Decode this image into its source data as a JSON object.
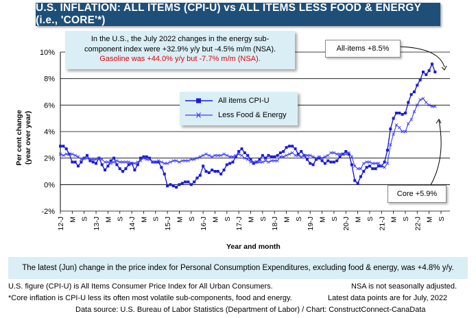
{
  "title": "U.S. INFLATION: ALL ITEMS (CPI-U) vs ALL ITEMS LESS FOOD & ENERGY (i.e., 'CORE'*)",
  "note": {
    "line1": "In the U.S., the July 2022 changes in the energy sub-",
    "line2": "component index were +32.9% y/y but -4.5% m/m (NSA).",
    "line3": "Gasoline was +44.0% y/y but -7.7% m/m (NSA)."
  },
  "callouts": {
    "all_items": "All-items +8.5%",
    "core": "Core +5.9%"
  },
  "axis": {
    "ylabel_1": "Per cent change",
    "ylabel_2": "(year over year)",
    "xlabel": "Year and month"
  },
  "bottom_note": "The latest (Jun) change in the price index for Personal Consumption Expenditures, excluding food & energy, was +4.8% y/y.",
  "footer": {
    "line1_left": "U.S. figure (CPI-U) is All Items Consumer Price Index for All Urban Consumers.",
    "line1_right": "NSA is not seasonally adjusted.",
    "line2_left": "*Core inflation is CPI-U less its often most volatile sub-components, food and energy.",
    "line2_right": "Latest data points are for July, 2022",
    "line3": "Data source: U.S. Bureau of Labor Statistics (Department of Labor) / Chart: ConstructConnect-CanaData"
  },
  "colors": {
    "title_bg": "#1e4f79",
    "panel_bg": "#daeef5",
    "all_items": "#1a1adc",
    "core": "#3b3bff",
    "red_text": "#e00000"
  },
  "chart_data": {
    "type": "line",
    "title": "U.S. INFLATION: ALL ITEMS (CPI-U) vs ALL ITEMS LESS FOOD & ENERGY (i.e., 'CORE'*)",
    "xlabel": "Year and month",
    "ylabel": "Per cent change (year over year)",
    "ylim": [
      -2,
      10
    ],
    "yticks": [
      "-2%",
      "0%",
      "2%",
      "4%",
      "6%",
      "8%",
      "10%"
    ],
    "x_start": "2012-01",
    "x_end": "2022-07",
    "xtick_labels": [
      "12-J",
      "M",
      "S",
      "13-J",
      "M",
      "S",
      "14-J",
      "M",
      "S",
      "15-J",
      "M",
      "S",
      "16-J",
      "M",
      "S",
      "17-J",
      "M",
      "S",
      "18-J",
      "M",
      "S",
      "19-J",
      "M",
      "S",
      "20-J",
      "M",
      "S",
      "21-J",
      "M",
      "S",
      "22-J",
      "M",
      "S"
    ],
    "grid": "horizontal",
    "legend_position": "upper-center",
    "series": [
      {
        "name": "All items CPI-U",
        "marker": "square",
        "values": [
          2.9,
          2.9,
          2.7,
          2.3,
          1.7,
          1.7,
          1.4,
          1.7,
          2.0,
          2.2,
          1.8,
          1.7,
          1.6,
          2.0,
          1.5,
          1.1,
          1.4,
          1.8,
          2.0,
          1.5,
          1.2,
          1.0,
          1.2,
          1.5,
          1.6,
          1.1,
          1.5,
          2.0,
          2.1,
          2.1,
          2.0,
          1.7,
          1.7,
          1.7,
          1.3,
          0.8,
          -0.1,
          0.0,
          -0.1,
          -0.2,
          0.0,
          0.1,
          0.2,
          0.2,
          0.0,
          0.2,
          0.5,
          0.7,
          1.4,
          1.0,
          0.9,
          1.1,
          1.0,
          1.0,
          0.8,
          1.1,
          1.5,
          1.6,
          1.7,
          2.1,
          2.5,
          2.7,
          2.4,
          2.2,
          1.9,
          1.6,
          1.7,
          1.9,
          2.2,
          2.0,
          2.2,
          2.1,
          2.1,
          2.2,
          2.4,
          2.5,
          2.8,
          2.9,
          2.9,
          2.7,
          2.3,
          2.5,
          2.2,
          1.9,
          1.6,
          1.5,
          1.9,
          2.0,
          1.8,
          1.6,
          1.8,
          1.7,
          1.7,
          1.8,
          2.1,
          2.3,
          2.5,
          2.3,
          1.5,
          0.3,
          0.1,
          0.6,
          1.0,
          1.3,
          1.4,
          1.2,
          1.2,
          1.4,
          1.4,
          1.7,
          2.6,
          4.2,
          5.0,
          5.4,
          5.4,
          5.3,
          5.4,
          6.2,
          6.8,
          7.0,
          7.5,
          7.9,
          8.5,
          8.3,
          8.6,
          9.1,
          8.5
        ]
      },
      {
        "name": "Less Food & Energy",
        "marker": "x",
        "values": [
          2.3,
          2.2,
          2.3,
          2.3,
          2.3,
          2.2,
          2.1,
          1.9,
          2.0,
          2.0,
          1.9,
          1.9,
          1.9,
          2.0,
          1.9,
          1.7,
          1.7,
          1.6,
          1.7,
          1.8,
          1.7,
          1.7,
          1.7,
          1.7,
          1.6,
          1.6,
          1.7,
          1.8,
          2.0,
          1.9,
          1.9,
          1.7,
          1.7,
          1.8,
          1.7,
          1.6,
          1.6,
          1.7,
          1.8,
          1.8,
          1.7,
          1.8,
          1.8,
          1.8,
          1.9,
          1.9,
          2.0,
          2.1,
          2.2,
          2.3,
          2.2,
          2.1,
          2.2,
          2.2,
          2.2,
          2.3,
          2.2,
          2.1,
          2.1,
          2.2,
          2.3,
          2.2,
          2.0,
          1.9,
          1.7,
          1.7,
          1.7,
          1.7,
          1.7,
          1.8,
          1.7,
          1.8,
          1.8,
          1.8,
          2.1,
          2.1,
          2.2,
          2.3,
          2.4,
          2.2,
          2.2,
          2.1,
          2.2,
          2.2,
          2.2,
          2.1,
          2.0,
          2.1,
          2.0,
          2.1,
          2.2,
          2.4,
          2.4,
          2.3,
          2.3,
          2.3,
          2.3,
          2.4,
          2.1,
          1.4,
          1.2,
          1.2,
          1.6,
          1.7,
          1.7,
          1.6,
          1.6,
          1.6,
          1.4,
          1.3,
          1.6,
          3.0,
          3.8,
          4.5,
          4.3,
          4.0,
          4.0,
          4.6,
          4.9,
          5.5,
          6.0,
          6.4,
          6.5,
          6.2,
          6.0,
          5.9,
          5.9
        ]
      }
    ]
  }
}
